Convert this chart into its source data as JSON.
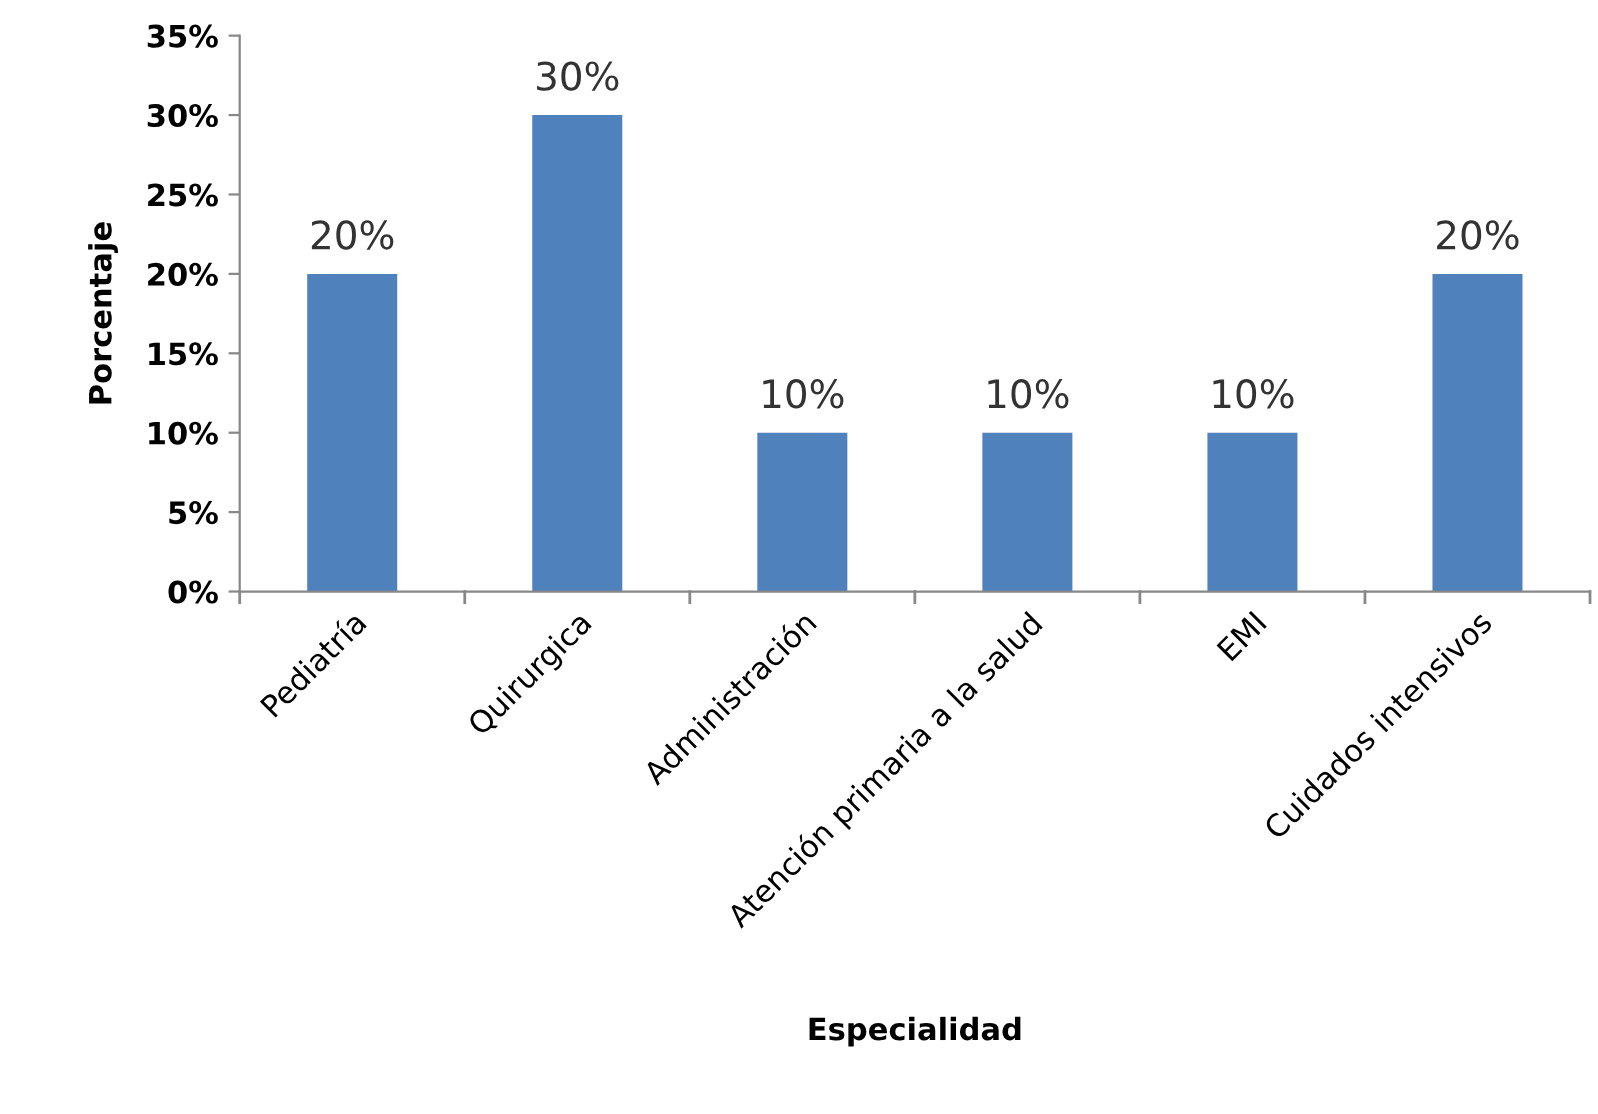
{
  "chart_data": {
    "type": "bar",
    "categories": [
      "Pediatría",
      "Quirurgica",
      "Administración",
      "Atención primaria a la salud",
      "EMI",
      "Cuidados intensivos"
    ],
    "values": [
      20,
      30,
      10,
      10,
      10,
      20
    ],
    "value_labels": [
      "20%",
      "30%",
      "10%",
      "10%",
      "10%",
      "20%"
    ],
    "color": "#4f81bd",
    "xlabel": "Especialidad",
    "ylabel": "Porcentaje",
    "ylim": [
      0,
      35
    ],
    "yticks": [
      {
        "value": 0,
        "label": "0%"
      },
      {
        "value": 5,
        "label": "5%"
      },
      {
        "value": 10,
        "label": "10%"
      },
      {
        "value": 15,
        "label": "15%"
      },
      {
        "value": 20,
        "label": "20%"
      },
      {
        "value": 25,
        "label": "25%"
      },
      {
        "value": 30,
        "label": "30%"
      },
      {
        "value": 35,
        "label": "35%"
      }
    ],
    "grid": false,
    "legend": false
  }
}
